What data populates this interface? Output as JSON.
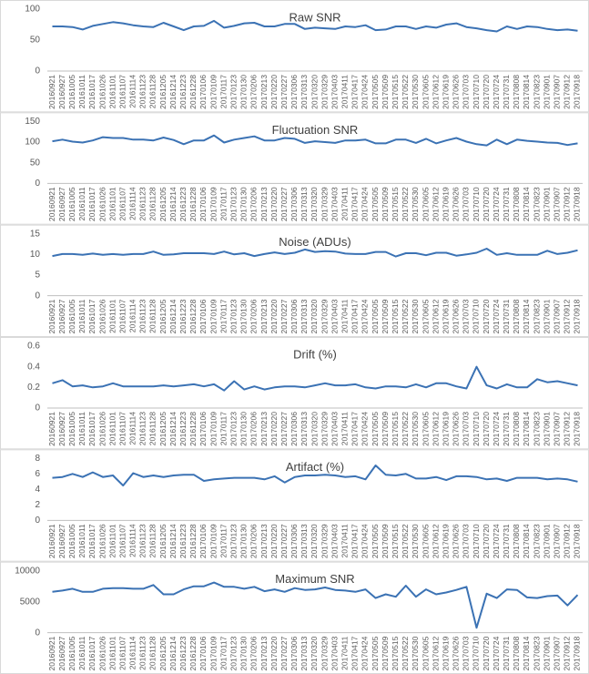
{
  "chart_data": [
    {
      "type": "line",
      "title": "Raw SNR",
      "color": "#3b72b4",
      "ylim": [
        0,
        100
      ],
      "yticks": [
        0,
        50,
        100
      ],
      "categories": [
        "20160921",
        "20160927",
        "20161005",
        "20161011",
        "20161017",
        "20161026",
        "20161101",
        "20161107",
        "20161114",
        "20161123",
        "20161128",
        "20161205",
        "20161214",
        "20161223",
        "20161228",
        "20170106",
        "20170109",
        "20170117",
        "20170123",
        "20170130",
        "20170206",
        "20170213",
        "20170220",
        "20170227",
        "20170306",
        "20170313",
        "20170320",
        "20170329",
        "20170403",
        "20170411",
        "20170417",
        "20170424",
        "20170505",
        "20170509",
        "20170515",
        "20170522",
        "20170530",
        "20170605",
        "20170612",
        "20170619",
        "20170626",
        "20170703",
        "20170710",
        "20170720",
        "20170724",
        "20170731",
        "20170808",
        "20170814",
        "20170823",
        "20170901",
        "20170907",
        "20170912",
        "20170918"
      ],
      "values": [
        72,
        72,
        71,
        67,
        73,
        76,
        79,
        77,
        74,
        72,
        71,
        78,
        72,
        66,
        72,
        73,
        81,
        70,
        73,
        77,
        78,
        72,
        72,
        76,
        76,
        68,
        70,
        69,
        68,
        72,
        71,
        74,
        66,
        67,
        72,
        72,
        68,
        72,
        70,
        75,
        77,
        71,
        69,
        66,
        64,
        72,
        68,
        72,
        71,
        68,
        66,
        67,
        65
      ]
    },
    {
      "type": "line",
      "title": "Fluctuation SNR",
      "color": "#3b72b4",
      "ylim": [
        0,
        150
      ],
      "yticks": [
        0,
        50,
        100,
        150
      ],
      "categories": [
        "20160921",
        "20160927",
        "20161005",
        "20161011",
        "20161017",
        "20161026",
        "20161101",
        "20161107",
        "20161114",
        "20161123",
        "20161128",
        "20161205",
        "20161214",
        "20161223",
        "20161228",
        "20170106",
        "20170109",
        "20170117",
        "20170123",
        "20170130",
        "20170206",
        "20170213",
        "20170220",
        "20170227",
        "20170306",
        "20170313",
        "20170320",
        "20170329",
        "20170403",
        "20170411",
        "20170417",
        "20170424",
        "20170505",
        "20170509",
        "20170515",
        "20170522",
        "20170530",
        "20170605",
        "20170612",
        "20170619",
        "20170626",
        "20170703",
        "20170710",
        "20170720",
        "20170724",
        "20170731",
        "20170808",
        "20170814",
        "20170823",
        "20170901",
        "20170907",
        "20170912",
        "20170918"
      ],
      "values": [
        102,
        106,
        101,
        99,
        104,
        112,
        110,
        110,
        106,
        106,
        104,
        111,
        105,
        95,
        104,
        104,
        116,
        99,
        106,
        110,
        114,
        104,
        104,
        110,
        108,
        98,
        102,
        100,
        98,
        104,
        104,
        106,
        97,
        97,
        106,
        106,
        98,
        108,
        97,
        104,
        110,
        101,
        95,
        92,
        106,
        95,
        106,
        103,
        101,
        99,
        98,
        93,
        97
      ]
    },
    {
      "type": "line",
      "title": "Noise (ADUs)",
      "color": "#3b72b4",
      "ylim": [
        0,
        15
      ],
      "yticks": [
        0,
        5,
        10,
        15
      ],
      "categories": [
        "20160921",
        "20160927",
        "20161005",
        "20161011",
        "20161017",
        "20161026",
        "20161101",
        "20161107",
        "20161114",
        "20161123",
        "20161128",
        "20161205",
        "20161214",
        "20161223",
        "20161228",
        "20170106",
        "20170109",
        "20170117",
        "20170123",
        "20170130",
        "20170206",
        "20170213",
        "20170220",
        "20170227",
        "20170306",
        "20170313",
        "20170320",
        "20170329",
        "20170403",
        "20170411",
        "20170417",
        "20170424",
        "20170505",
        "20170509",
        "20170515",
        "20170522",
        "20170530",
        "20170605",
        "20170612",
        "20170619",
        "20170626",
        "20170703",
        "20170710",
        "20170720",
        "20170724",
        "20170731",
        "20170808",
        "20170814",
        "20170823",
        "20170901",
        "20170907",
        "20170912",
        "20170918"
      ],
      "values": [
        9.6,
        10.1,
        10.1,
        9.9,
        10.2,
        9.9,
        10.1,
        9.9,
        10.1,
        10.1,
        10.7,
        9.9,
        10.0,
        10.3,
        10.3,
        10.3,
        10.1,
        10.7,
        10.0,
        10.3,
        9.6,
        10.1,
        10.5,
        10.1,
        10.4,
        11.2,
        10.6,
        10.8,
        10.7,
        10.2,
        10.1,
        10.1,
        10.6,
        10.6,
        9.5,
        10.3,
        10.3,
        9.8,
        10.4,
        10.4,
        9.7,
        10.0,
        10.4,
        11.4,
        9.9,
        10.3,
        9.9,
        9.9,
        9.9,
        10.9,
        10.1,
        10.4,
        11.0
      ]
    },
    {
      "type": "line",
      "title": "Drift (%)",
      "color": "#3b72b4",
      "ylim": [
        0,
        0.6
      ],
      "yticks": [
        0,
        0.2,
        0.4,
        0.6
      ],
      "categories": [
        "20160921",
        "20160927",
        "20161005",
        "20161011",
        "20161017",
        "20161026",
        "20161101",
        "20161107",
        "20161114",
        "20161123",
        "20161128",
        "20161205",
        "20161214",
        "20161223",
        "20161228",
        "20170106",
        "20170109",
        "20170117",
        "20170123",
        "20170130",
        "20170206",
        "20170213",
        "20170220",
        "20170227",
        "20170306",
        "20170313",
        "20170320",
        "20170329",
        "20170403",
        "20170411",
        "20170417",
        "20170424",
        "20170505",
        "20170509",
        "20170515",
        "20170522",
        "20170530",
        "20170605",
        "20170612",
        "20170619",
        "20170626",
        "20170703",
        "20170710",
        "20170720",
        "20170724",
        "20170731",
        "20170808",
        "20170814",
        "20170823",
        "20170901",
        "20170907",
        "20170912",
        "20170918"
      ],
      "values": [
        0.24,
        0.27,
        0.21,
        0.22,
        0.2,
        0.21,
        0.24,
        0.21,
        0.21,
        0.21,
        0.21,
        0.22,
        0.21,
        0.22,
        0.23,
        0.21,
        0.23,
        0.17,
        0.26,
        0.18,
        0.21,
        0.18,
        0.2,
        0.21,
        0.21,
        0.2,
        0.22,
        0.24,
        0.22,
        0.22,
        0.23,
        0.2,
        0.19,
        0.21,
        0.21,
        0.2,
        0.23,
        0.2,
        0.24,
        0.24,
        0.21,
        0.19,
        0.4,
        0.22,
        0.19,
        0.23,
        0.2,
        0.2,
        0.28,
        0.25,
        0.26,
        0.24,
        0.22
      ]
    },
    {
      "type": "line",
      "title": "Artifact (%)",
      "color": "#3b72b4",
      "ylim": [
        0,
        8
      ],
      "yticks": [
        0,
        2,
        4,
        6,
        8
      ],
      "categories": [
        "20160921",
        "20160927",
        "20161005",
        "20161011",
        "20161017",
        "20161026",
        "20161101",
        "20161107",
        "20161114",
        "20161123",
        "20161128",
        "20161205",
        "20161214",
        "20161223",
        "20161228",
        "20170106",
        "20170109",
        "20170117",
        "20170123",
        "20170130",
        "20170206",
        "20170213",
        "20170220",
        "20170227",
        "20170306",
        "20170313",
        "20170320",
        "20170329",
        "20170403",
        "20170411",
        "20170417",
        "20170424",
        "20170505",
        "20170509",
        "20170515",
        "20170522",
        "20170530",
        "20170605",
        "20170612",
        "20170619",
        "20170626",
        "20170703",
        "20170710",
        "20170720",
        "20170724",
        "20170731",
        "20170808",
        "20170814",
        "20170823",
        "20170901",
        "20170907",
        "20170912",
        "20170918"
      ],
      "values": [
        5.5,
        5.6,
        6.0,
        5.6,
        6.2,
        5.6,
        5.8,
        4.5,
        6.1,
        5.6,
        5.8,
        5.6,
        5.8,
        5.9,
        5.9,
        5.1,
        5.3,
        5.4,
        5.5,
        5.5,
        5.5,
        5.3,
        5.7,
        4.9,
        5.6,
        5.8,
        5.8,
        5.9,
        5.8,
        5.6,
        5.7,
        5.3,
        7.1,
        5.9,
        5.8,
        6.0,
        5.4,
        5.4,
        5.6,
        5.2,
        5.7,
        5.7,
        5.6,
        5.3,
        5.4,
        5.1,
        5.5,
        5.5,
        5.5,
        5.3,
        5.4,
        5.3,
        5.0
      ]
    },
    {
      "type": "line",
      "title": "Maximum SNR",
      "color": "#3b72b4",
      "ylim": [
        0,
        10000
      ],
      "yticks": [
        0,
        5000,
        10000
      ],
      "categories": [
        "20160921",
        "20160927",
        "20161005",
        "20161011",
        "20161017",
        "20161026",
        "20161101",
        "20161107",
        "20161114",
        "20161123",
        "20161128",
        "20161205",
        "20161214",
        "20161223",
        "20161228",
        "20170106",
        "20170109",
        "20170117",
        "20170123",
        "20170130",
        "20170206",
        "20170213",
        "20170220",
        "20170227",
        "20170306",
        "20170313",
        "20170320",
        "20170329",
        "20170403",
        "20170411",
        "20170417",
        "20170424",
        "20170505",
        "20170509",
        "20170515",
        "20170522",
        "20170530",
        "20170605",
        "20170612",
        "20170619",
        "20170626",
        "20170703",
        "20170710",
        "20170720",
        "20170724",
        "20170731",
        "20170808",
        "20170814",
        "20170823",
        "20170901",
        "20170907",
        "20170912",
        "20170918"
      ],
      "values": [
        6600,
        6800,
        7100,
        6600,
        6600,
        7100,
        7200,
        7200,
        7100,
        7100,
        7700,
        6200,
        6200,
        7000,
        7500,
        7500,
        8100,
        7400,
        7400,
        7100,
        7400,
        6700,
        7000,
        6600,
        7200,
        6900,
        7000,
        7300,
        6900,
        6800,
        6600,
        7000,
        5600,
        6200,
        5800,
        7600,
        5800,
        7000,
        6200,
        6500,
        6900,
        7400,
        800,
        6300,
        5600,
        7000,
        6900,
        5700,
        5600,
        5900,
        6000,
        4400,
        6100
      ]
    }
  ]
}
